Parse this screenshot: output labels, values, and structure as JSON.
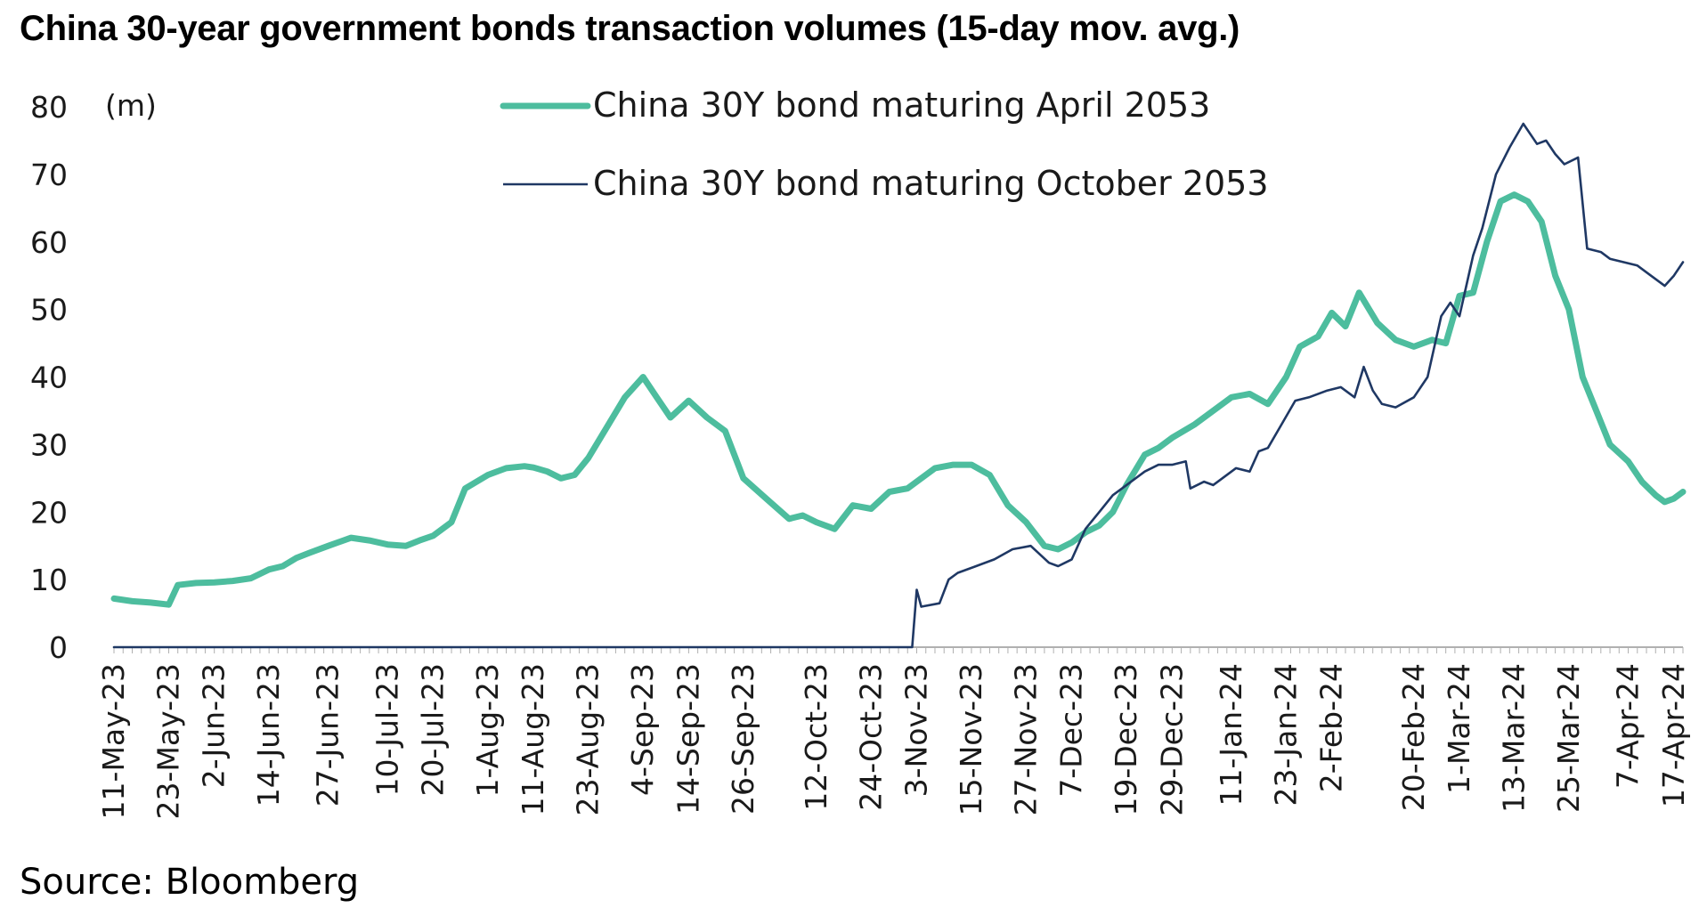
{
  "title": "China 30-year government bonds transaction volumes (15-day mov. avg.)",
  "source": "Source: Bloomberg",
  "chart_data": {
    "type": "line",
    "title": "China 30-year government bonds transaction volumes (15-day mov. avg.)",
    "ylabel": "(m)",
    "ylim": [
      0,
      80
    ],
    "yticks": [
      0,
      10,
      20,
      30,
      40,
      50,
      60,
      70,
      80
    ],
    "grid": false,
    "legend_position": "top-center",
    "x_tick_labels": [
      "11-May-23",
      "23-May-23",
      "2-Jun-23",
      "14-Jun-23",
      "27-Jun-23",
      "10-Jul-23",
      "20-Jul-23",
      "1-Aug-23",
      "11-Aug-23",
      "23-Aug-23",
      "4-Sep-23",
      "14-Sep-23",
      "26-Sep-23",
      "12-Oct-23",
      "24-Oct-23",
      "3-Nov-23",
      "15-Nov-23",
      "27-Nov-23",
      "7-Dec-23",
      "19-Dec-23",
      "29-Dec-23",
      "11-Jan-24",
      "23-Jan-24",
      "2-Feb-24",
      "20-Feb-24",
      "1-Mar-24",
      "13-Mar-24",
      "25-Mar-24",
      "7-Apr-24",
      "17-Apr-24"
    ],
    "series": [
      {
        "name": "China 30Y bond maturing April 2053",
        "color": "#4dbd9e",
        "line_width": "thick",
        "x": [
          "2023-05-11",
          "2023-05-15",
          "2023-05-19",
          "2023-05-23",
          "2023-05-25",
          "2023-05-29",
          "2023-06-02",
          "2023-06-06",
          "2023-06-10",
          "2023-06-14",
          "2023-06-17",
          "2023-06-20",
          "2023-06-23",
          "2023-06-27",
          "2023-07-02",
          "2023-07-06",
          "2023-07-10",
          "2023-07-14",
          "2023-07-17",
          "2023-07-20",
          "2023-07-24",
          "2023-07-27",
          "2023-08-01",
          "2023-08-05",
          "2023-08-09",
          "2023-08-11",
          "2023-08-14",
          "2023-08-17",
          "2023-08-20",
          "2023-08-23",
          "2023-08-27",
          "2023-08-31",
          "2023-09-04",
          "2023-09-07",
          "2023-09-10",
          "2023-09-14",
          "2023-09-18",
          "2023-09-22",
          "2023-09-26",
          "2023-10-01",
          "2023-10-06",
          "2023-10-09",
          "2023-10-12",
          "2023-10-16",
          "2023-10-20",
          "2023-10-24",
          "2023-10-28",
          "2023-11-01",
          "2023-11-03",
          "2023-11-07",
          "2023-11-11",
          "2023-11-15",
          "2023-11-19",
          "2023-11-23",
          "2023-11-27",
          "2023-12-01",
          "2023-12-04",
          "2023-12-07",
          "2023-12-10",
          "2023-12-13",
          "2023-12-16",
          "2023-12-19",
          "2023-12-23",
          "2023-12-26",
          "2023-12-29",
          "2024-01-03",
          "2024-01-07",
          "2024-01-11",
          "2024-01-15",
          "2024-01-19",
          "2024-01-23",
          "2024-01-26",
          "2024-01-30",
          "2024-02-02",
          "2024-02-05",
          "2024-02-08",
          "2024-02-12",
          "2024-02-16",
          "2024-02-20",
          "2024-02-24",
          "2024-02-27",
          "2024-03-01",
          "2024-03-04",
          "2024-03-07",
          "2024-03-10",
          "2024-03-13",
          "2024-03-16",
          "2024-03-19",
          "2024-03-22",
          "2024-03-25",
          "2024-03-28",
          "2024-03-31",
          "2024-04-03",
          "2024-04-07",
          "2024-04-10",
          "2024-04-13",
          "2024-04-15",
          "2024-04-17",
          "2024-04-19"
        ],
        "values": [
          7.2,
          6.8,
          6.6,
          6.3,
          9.2,
          9.5,
          9.6,
          9.8,
          10.2,
          11.5,
          12.0,
          13.2,
          14.0,
          15.0,
          16.2,
          15.8,
          15.2,
          15.0,
          15.8,
          16.5,
          18.5,
          23.5,
          25.5,
          26.5,
          26.8,
          26.6,
          26.0,
          25.0,
          25.5,
          28.0,
          32.5,
          37.0,
          40.0,
          37.0,
          34.0,
          36.5,
          34.0,
          32.0,
          25.0,
          22.0,
          19.0,
          19.5,
          18.5,
          17.5,
          21.0,
          20.5,
          23.0,
          23.5,
          24.5,
          26.5,
          27.0,
          27.0,
          25.5,
          21.0,
          18.5,
          15.0,
          14.5,
          15.5,
          17.0,
          18.0,
          20.0,
          24.0,
          28.5,
          29.5,
          31.0,
          33.0,
          35.0,
          37.0,
          37.5,
          36.0,
          40.0,
          44.5,
          46.0,
          49.5,
          47.5,
          52.5,
          48.0,
          45.5,
          44.5,
          45.5,
          45.0,
          52.0,
          52.5,
          60.0,
          66.0,
          67.0,
          66.0,
          63.0,
          55.0,
          50.0,
          40.0,
          35.0,
          30.0,
          27.5,
          24.5,
          22.5,
          21.5,
          22.0,
          23.0
        ]
      },
      {
        "name": "China 30Y bond maturing October 2053",
        "color": "#1f3864",
        "line_width": "thin",
        "x": [
          "2023-05-11",
          "2023-11-02",
          "2023-11-03",
          "2023-11-04",
          "2023-11-08",
          "2023-11-10",
          "2023-11-12",
          "2023-11-16",
          "2023-11-20",
          "2023-11-24",
          "2023-11-28",
          "2023-12-02",
          "2023-12-04",
          "2023-12-07",
          "2023-12-10",
          "2023-12-13",
          "2023-12-16",
          "2023-12-19",
          "2023-12-23",
          "2023-12-26",
          "2023-12-29",
          "2024-01-01",
          "2024-01-02",
          "2024-01-05",
          "2024-01-07",
          "2024-01-09",
          "2024-01-12",
          "2024-01-15",
          "2024-01-17",
          "2024-01-19",
          "2024-01-22",
          "2024-01-25",
          "2024-01-28",
          "2024-02-01",
          "2024-02-04",
          "2024-02-07",
          "2024-02-09",
          "2024-02-11",
          "2024-02-13",
          "2024-02-16",
          "2024-02-20",
          "2024-02-23",
          "2024-02-26",
          "2024-02-28",
          "2024-03-01",
          "2024-03-04",
          "2024-03-06",
          "2024-03-09",
          "2024-03-12",
          "2024-03-15",
          "2024-03-18",
          "2024-03-20",
          "2024-03-22",
          "2024-03-24",
          "2024-03-27",
          "2024-03-29",
          "2024-04-01",
          "2024-04-03",
          "2024-04-06",
          "2024-04-09",
          "2024-04-12",
          "2024-04-15",
          "2024-04-17",
          "2024-04-19"
        ],
        "values": [
          0.0,
          0.0,
          8.5,
          6.0,
          6.5,
          10.0,
          11.0,
          12.0,
          13.0,
          14.5,
          15.0,
          12.5,
          12.0,
          13.0,
          17.5,
          20.0,
          22.5,
          24.0,
          26.0,
          27.0,
          27.0,
          27.5,
          23.5,
          24.5,
          24.0,
          25.0,
          26.5,
          26.0,
          29.0,
          29.5,
          33.0,
          36.5,
          37.0,
          38.0,
          38.5,
          37.0,
          41.5,
          38.0,
          36.0,
          35.5,
          37.0,
          40.0,
          49.0,
          51.0,
          49.0,
          58.0,
          62.0,
          70.0,
          74.0,
          77.5,
          74.5,
          75.0,
          73.0,
          71.5,
          72.5,
          59.0,
          58.5,
          57.5,
          57.0,
          56.5,
          55.0,
          53.5,
          55.0,
          57.0
        ]
      }
    ]
  }
}
